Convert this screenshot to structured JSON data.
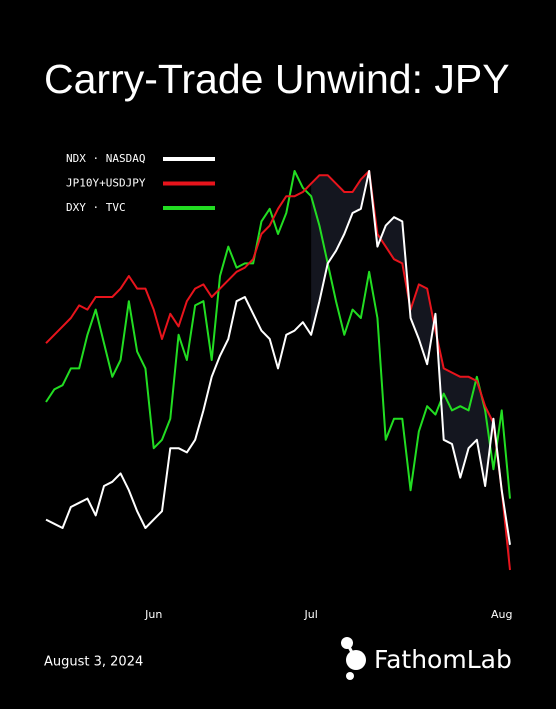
{
  "chart_data": {
    "type": "line",
    "title": "Carry-Trade Unwind: JPY",
    "date": "August 3, 2024",
    "brand": "FathomLab",
    "categories": [
      null,
      null,
      null,
      null,
      null,
      null,
      null,
      null,
      null,
      null,
      null,
      null,
      null,
      "Jun",
      null,
      null,
      null,
      null,
      null,
      null,
      null,
      null,
      null,
      null,
      null,
      null,
      null,
      null,
      null,
      null,
      null,
      null,
      "Jul",
      null,
      null,
      null,
      null,
      null,
      null,
      null,
      null,
      null,
      null,
      null,
      null,
      null,
      null,
      null,
      null,
      null,
      null,
      null,
      null,
      null,
      null,
      "Aug",
      null
    ],
    "ylim": [
      0,
      100
    ],
    "grid": false,
    "series": [
      {
        "name": "NDX · NASDAQ",
        "color": "#ffffff",
        "values": [
          12,
          11,
          10,
          15,
          16,
          17,
          13,
          20,
          21,
          23,
          19,
          14,
          10,
          12,
          14,
          29,
          29,
          28,
          31,
          38,
          46,
          51,
          55,
          64,
          65,
          61,
          57,
          55,
          48,
          56,
          57,
          59,
          56,
          64,
          73,
          76,
          80,
          85,
          86,
          95,
          77,
          82,
          84,
          83,
          60,
          55,
          49,
          61,
          31,
          30,
          22,
          29,
          31,
          20,
          36,
          19,
          6
        ]
      },
      {
        "name": "JP10Y+USDJPY",
        "color": "#e8141c",
        "values": [
          54,
          56,
          58,
          60,
          63,
          62,
          65,
          65,
          65,
          67,
          70,
          67,
          67,
          62,
          55,
          61,
          58,
          64,
          67,
          68,
          65,
          67,
          69,
          71,
          72,
          74,
          80,
          82,
          86,
          89,
          89,
          90,
          92,
          94,
          94,
          92,
          90,
          90,
          93,
          95,
          80,
          77,
          74,
          73,
          62,
          68,
          67,
          57,
          48,
          47,
          46,
          46,
          45,
          39,
          35,
          19,
          0
        ]
      },
      {
        "name": "DXY · TVC",
        "color": "#22dd22",
        "values": [
          40,
          43,
          44,
          48,
          48,
          56,
          62,
          54,
          46,
          50,
          64,
          52,
          48,
          29,
          31,
          36,
          56,
          50,
          63,
          64,
          50,
          70,
          77,
          72,
          73,
          73,
          83,
          86,
          80,
          85,
          95,
          91,
          89,
          82,
          73,
          64,
          56,
          62,
          60,
          71,
          60,
          31,
          36,
          36,
          19,
          33,
          39,
          37,
          42,
          38,
          39,
          38,
          46,
          38,
          24,
          38,
          17
        ]
      }
    ]
  }
}
